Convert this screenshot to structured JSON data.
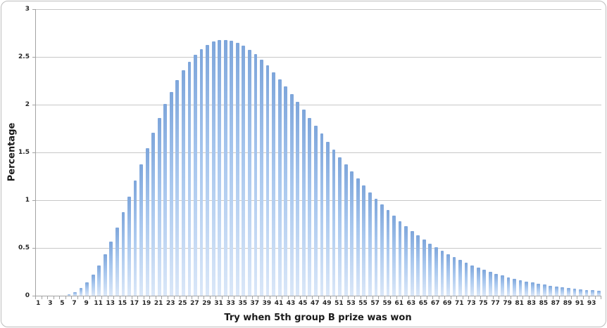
{
  "frame": {
    "background": "#FFFFFF",
    "border_color": "#BDBDBD"
  },
  "chart_data": {
    "type": "bar",
    "title": "",
    "xlabel": "Try when 5th group B prize was won",
    "ylabel": "Percentage",
    "ylim": [
      0,
      3
    ],
    "y_tick_step": 0.5,
    "grid": "horizontal",
    "legend": "none",
    "y_ticks": [
      "0",
      "0.5",
      "1",
      "1.5",
      "2",
      "2.5",
      "3"
    ],
    "x_tick_labels": [
      "1",
      "3",
      "5",
      "7",
      "9",
      "11",
      "13",
      "15",
      "17",
      "19",
      "21",
      "23",
      "25",
      "27",
      "29",
      "31",
      "33",
      "35",
      "37",
      "39",
      "41",
      "43",
      "45",
      "47",
      "49",
      "51",
      "53",
      "55",
      "57",
      "59",
      "61",
      "63",
      "65",
      "67",
      "69",
      "71",
      "73",
      "75",
      "77",
      "79",
      "81",
      "83",
      "85",
      "87",
      "89",
      "91",
      "93"
    ],
    "categories": [
      1,
      2,
      3,
      4,
      5,
      6,
      7,
      8,
      9,
      10,
      11,
      12,
      13,
      14,
      15,
      16,
      17,
      18,
      19,
      20,
      21,
      22,
      23,
      24,
      25,
      26,
      27,
      28,
      29,
      30,
      31,
      32,
      33,
      34,
      35,
      36,
      37,
      38,
      39,
      40,
      41,
      42,
      43,
      44,
      45,
      46,
      47,
      48,
      49,
      50,
      51,
      52,
      53,
      54,
      55,
      56,
      57,
      58,
      59,
      60,
      61,
      62,
      63,
      64,
      65,
      66,
      67,
      68,
      69,
      70,
      71,
      72,
      73,
      74,
      75,
      76,
      77,
      78,
      79,
      80,
      81,
      82,
      83,
      84,
      85,
      86,
      87,
      88,
      89,
      90,
      91,
      92,
      93,
      94
    ],
    "values": [
      0,
      0,
      0,
      0,
      0.003,
      0.015,
      0.039,
      0.08,
      0.139,
      0.218,
      0.317,
      0.435,
      0.569,
      0.716,
      0.874,
      1.04,
      1.209,
      1.378,
      1.545,
      1.707,
      1.86,
      2.004,
      2.136,
      2.255,
      2.359,
      2.449,
      2.524,
      2.584,
      2.628,
      2.659,
      2.675,
      2.678,
      2.669,
      2.648,
      2.617,
      2.577,
      2.528,
      2.471,
      2.409,
      2.34,
      2.268,
      2.191,
      2.112,
      2.03,
      1.947,
      1.864,
      1.78,
      1.697,
      1.614,
      1.532,
      1.452,
      1.374,
      1.298,
      1.225,
      1.153,
      1.084,
      1.018,
      0.955,
      0.895,
      0.837,
      0.782,
      0.73,
      0.68,
      0.633,
      0.589,
      0.547,
      0.508,
      0.471,
      0.436,
      0.404,
      0.374,
      0.345,
      0.319,
      0.294,
      0.271,
      0.25,
      0.23,
      0.211,
      0.194,
      0.178,
      0.164,
      0.15,
      0.138,
      0.126,
      0.116,
      0.106,
      0.097,
      0.088,
      0.081,
      0.074,
      0.067,
      0.061,
      0.056,
      0.051
    ],
    "colors": {
      "bar_gradient_top": "#7EA6DB",
      "bar_gradient_mid": "#A8C7EE",
      "bar_gradient_bottom": "#DAE7F8",
      "gridline": "#C7C7C7",
      "axis": "#A3A3A3",
      "tick_label": "#262626"
    }
  }
}
